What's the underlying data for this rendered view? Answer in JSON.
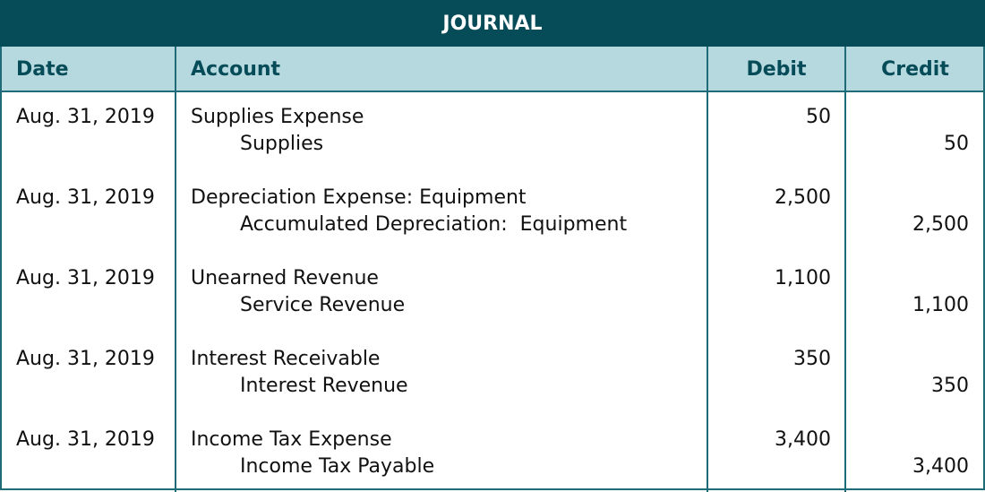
{
  "title": "JOURNAL",
  "columns": {
    "date": "Date",
    "account": "Account",
    "debit": "Debit",
    "credit": "Credit"
  },
  "entries": [
    {
      "date": "Aug. 31, 2019",
      "debit_account": "Supplies Expense",
      "credit_account": "Supplies",
      "debit": "50",
      "credit": "50"
    },
    {
      "date": "Aug. 31, 2019",
      "debit_account": "Depreciation Expense: Equipment",
      "credit_account": "Accumulated Depreciation:  Equipment",
      "debit": "2,500",
      "credit": "2,500"
    },
    {
      "date": "Aug. 31, 2019",
      "debit_account": "Unearned Revenue",
      "credit_account": "Service Revenue",
      "debit": "1,100",
      "credit": "1,100"
    },
    {
      "date": "Aug. 31, 2019",
      "debit_account": "Interest Receivable",
      "credit_account": "Interest Revenue",
      "debit": "350",
      "credit": "350"
    },
    {
      "date": "Aug. 31, 2019",
      "debit_account": "Income Tax Expense",
      "credit_account": "Income Tax Payable",
      "debit": "3,400",
      "credit": "3,400"
    }
  ],
  "colors": {
    "title_bg": "#064b58",
    "header_bg": "#b5d9df",
    "border": "#1f6c78"
  }
}
